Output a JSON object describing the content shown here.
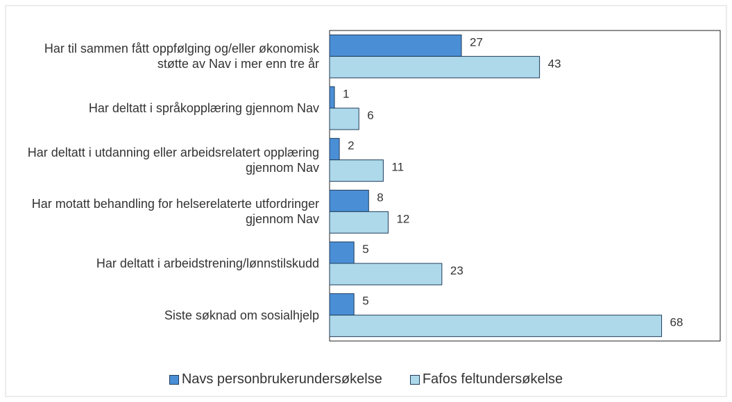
{
  "chart_data": {
    "type": "bar",
    "orientation": "horizontal",
    "categories": [
      "Har til sammen fått oppfølging og/eller økonomisk støtte av Nav i mer enn tre år",
      "Har deltatt i språkopplæring gjennom Nav",
      "Har deltatt i utdanning eller arbeidsrelatert opplæring gjennom Nav",
      "Har motatt behandling for helserelaterte utfordringer gjennom Nav",
      "Har deltatt i arbeidstrening/lønnstilskudd",
      "Siste søknad om sosialhjelp"
    ],
    "series": [
      {
        "name": "Navs personbrukerundersøkelse",
        "color": "#4a8fd6",
        "values": [
          27,
          1,
          2,
          8,
          5,
          5
        ]
      },
      {
        "name": "Fafos feltundersøkelse",
        "color": "#add9eb",
        "values": [
          43,
          6,
          11,
          12,
          23,
          68
        ]
      }
    ],
    "xlim": [
      0,
      80
    ],
    "legend": "bottom"
  }
}
